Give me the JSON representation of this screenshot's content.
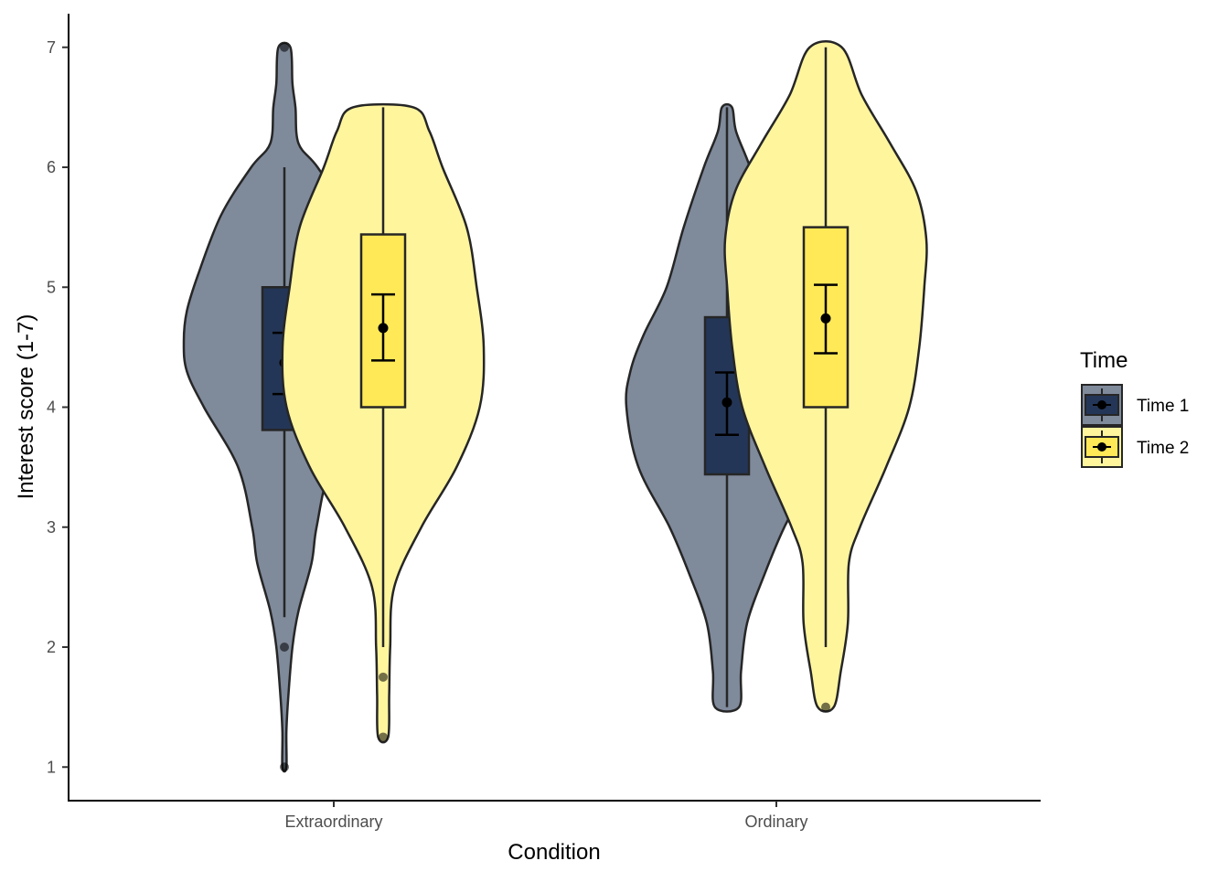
{
  "chart_data": {
    "type": "violin",
    "xlabel": "Condition",
    "ylabel": "Interest score (1-7)",
    "categories": [
      "Extraordinary",
      "Ordinary"
    ],
    "ylim": [
      0.72,
      7.28
    ],
    "yticks": [
      1,
      2,
      3,
      4,
      5,
      6,
      7
    ],
    "grid": false,
    "legend": {
      "title": "Time",
      "placement": "right"
    },
    "series": [
      {
        "name": "Time 1",
        "violin_fill": "#7f8a9b",
        "box_fill": "#243657",
        "groups": [
          {
            "category": "Extraordinary",
            "density": [
              [
                1,
                0.02
              ],
              [
                1.3,
                0.02
              ],
              [
                1.6,
                0.04
              ],
              [
                2.0,
                0.08
              ],
              [
                2.3,
                0.14
              ],
              [
                2.7,
                0.27
              ],
              [
                3.0,
                0.32
              ],
              [
                3.5,
                0.46
              ],
              [
                4.0,
                0.8
              ],
              [
                4.3,
                0.97
              ],
              [
                4.55,
                1.0
              ],
              [
                4.8,
                0.97
              ],
              [
                5.1,
                0.86
              ],
              [
                5.6,
                0.63
              ],
              [
                6.0,
                0.33
              ],
              [
                6.2,
                0.14
              ],
              [
                6.5,
                0.11
              ],
              [
                6.7,
                0.08
              ],
              [
                7.0,
                0.06
              ]
            ],
            "box": {
              "q1": 3.81,
              "median": 4.37,
              "q3": 5.0,
              "whisker_low": 2.25,
              "whisker_high": 6.0
            },
            "mean": 4.37,
            "ci": [
              4.11,
              4.62
            ],
            "outliers": [
              1,
              2,
              7
            ]
          },
          {
            "category": "Ordinary",
            "density": [
              [
                1.5,
                0.12
              ],
              [
                1.8,
                0.14
              ],
              [
                2.2,
                0.2
              ],
              [
                2.6,
                0.37
              ],
              [
                3.0,
                0.57
              ],
              [
                3.5,
                0.88
              ],
              [
                4.0,
                1.0
              ],
              [
                4.3,
                0.96
              ],
              [
                4.6,
                0.83
              ],
              [
                5.0,
                0.6
              ],
              [
                5.5,
                0.43
              ],
              [
                6.0,
                0.23
              ],
              [
                6.3,
                0.09
              ],
              [
                6.5,
                0.05
              ]
            ],
            "box": {
              "q1": 3.44,
              "median": 4.04,
              "q3": 4.75,
              "whisker_low": 1.5,
              "whisker_high": 6.5
            },
            "mean": 4.04,
            "ci": [
              3.77,
              4.29
            ],
            "outliers": []
          }
        ]
      },
      {
        "name": "Time 2",
        "violin_fill": "#fff59d",
        "box_fill": "#ffe957",
        "groups": [
          {
            "category": "Extraordinary",
            "density": [
              [
                1.25,
                0.05
              ],
              [
                1.6,
                0.06
              ],
              [
                2.0,
                0.07
              ],
              [
                2.5,
                0.11
              ],
              [
                3.0,
                0.38
              ],
              [
                3.5,
                0.73
              ],
              [
                4.0,
                0.96
              ],
              [
                4.5,
                1.0
              ],
              [
                5.0,
                0.93
              ],
              [
                5.5,
                0.83
              ],
              [
                6.0,
                0.59
              ],
              [
                6.3,
                0.46
              ],
              [
                6.5,
                0.3
              ]
            ],
            "box": {
              "q1": 4.0,
              "median": 4.66,
              "q3": 5.44,
              "whisker_low": 2.0,
              "whisker_high": 6.5
            },
            "mean": 4.66,
            "ci": [
              4.39,
              4.94
            ],
            "outliers": [
              1.25,
              1.75
            ]
          },
          {
            "category": "Ordinary",
            "density": [
              [
                1.5,
                0.08
              ],
              [
                1.8,
                0.15
              ],
              [
                2.2,
                0.22
              ],
              [
                2.7,
                0.23
              ],
              [
                3.0,
                0.34
              ],
              [
                3.5,
                0.6
              ],
              [
                4.0,
                0.83
              ],
              [
                4.5,
                0.93
              ],
              [
                5.0,
                0.98
              ],
              [
                5.4,
                1.0
              ],
              [
                5.8,
                0.9
              ],
              [
                6.2,
                0.64
              ],
              [
                6.6,
                0.36
              ],
              [
                7.0,
                0.16
              ]
            ],
            "box": {
              "q1": 4.0,
              "median": 4.74,
              "q3": 5.5,
              "whisker_low": 2.0,
              "whisker_high": 7.0
            },
            "mean": 4.74,
            "ci": [
              4.45,
              5.02
            ],
            "outliers": [
              1.5
            ]
          }
        ]
      }
    ]
  }
}
